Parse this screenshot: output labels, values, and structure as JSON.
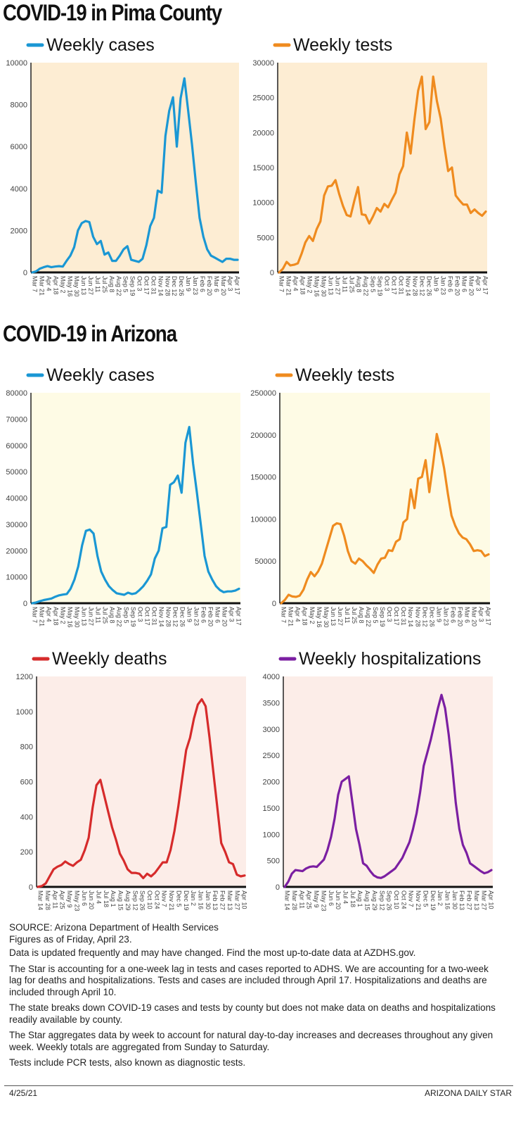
{
  "section_pima": "COVID-19 in Pima County",
  "section_arizona": "COVID-19 in Arizona",
  "colors": {
    "cases": "#1a97d4",
    "tests": "#ef8b1f",
    "deaths": "#d62b2b",
    "hosp": "#7b1fa2",
    "bg_pima": "#fdedd3",
    "bg_az": "#fefbe5",
    "bg_az2": "#fcede8"
  },
  "chart_data": [
    {
      "type": "line",
      "title": "Weekly cases",
      "region": "Pima County",
      "ylim": [
        0,
        10000
      ],
      "yticks": [
        0,
        2000,
        4000,
        6000,
        8000,
        10000
      ],
      "xticks": [
        "Mar 7",
        "Mar 21",
        "Apr 4",
        "Apr 18",
        "May 2",
        "May 16",
        "May 30",
        "Jun 13",
        "Jun 27",
        "Jul 11",
        "Jul 25",
        "Aug 8",
        "Aug 22",
        "Sep 5",
        "Sep 19",
        "Oct 3",
        "Oct 17",
        "Oct 31",
        "Nov 14",
        "Nov 28",
        "Dec 12",
        "Dec 26",
        "Jan 9",
        "Jan 23",
        "Feb 6",
        "Feb 20",
        "Mar 6",
        "Mar 20",
        "Apr 3",
        "Apr 17"
      ],
      "values": [
        0,
        50,
        180,
        250,
        300,
        250,
        280,
        300,
        280,
        550,
        800,
        1200,
        2000,
        2350,
        2450,
        2400,
        1700,
        1350,
        1500,
        850,
        950,
        550,
        550,
        800,
        1100,
        1250,
        600,
        550,
        500,
        650,
        1300,
        2200,
        2600,
        3900,
        3800,
        6500,
        7700,
        8350,
        6000,
        8300,
        9250,
        7700,
        6100,
        4300,
        2600,
        1700,
        1100,
        800,
        700,
        600,
        500,
        650,
        650,
        600,
        600
      ]
    },
    {
      "type": "line",
      "title": "Weekly tests",
      "region": "Pima County",
      "ylim": [
        0,
        30000
      ],
      "yticks": [
        0,
        5000,
        10000,
        15000,
        20000,
        25000,
        30000
      ],
      "xticks": [
        "Mar 7",
        "Mar 21",
        "Apr 4",
        "Apr 18",
        "May 2",
        "May 16",
        "May 30",
        "Jun 13",
        "Jun 27",
        "Jul 11",
        "Jul 25",
        "Aug 8",
        "Aug 22",
        "Sep 5",
        "Sep 19",
        "Oct 3",
        "Oct 17",
        "Oct 31",
        "Nov 14",
        "Nov 28",
        "Dec 12",
        "Dec 26",
        "Jan 9",
        "Jan 23",
        "Feb 6",
        "Feb 20",
        "Mar 6",
        "Mar 20",
        "Apr 3",
        "Apr 17"
      ],
      "values": [
        0,
        500,
        1500,
        1000,
        1100,
        1300,
        2700,
        4300,
        5200,
        4500,
        6200,
        7300,
        11000,
        12300,
        12400,
        13200,
        11200,
        9500,
        8200,
        8000,
        10200,
        12200,
        8300,
        8200,
        7000,
        8000,
        9200,
        8700,
        9800,
        9300,
        10400,
        11400,
        14000,
        15200,
        20000,
        17000,
        21800,
        26000,
        28000,
        20500,
        21500,
        28000,
        24500,
        22000,
        18000,
        14500,
        15000,
        11000,
        10300,
        9700,
        9700,
        8500,
        9000,
        8500,
        8100,
        8700
      ]
    },
    {
      "type": "line",
      "title": "Weekly cases",
      "region": "Arizona",
      "ylim": [
        0,
        80000
      ],
      "yticks": [
        0,
        10000,
        20000,
        30000,
        40000,
        50000,
        60000,
        70000,
        80000
      ],
      "xticks": [
        "Mar 7",
        "Mar 21",
        "Apr 4",
        "Apr 18",
        "May 2",
        "May 16",
        "May 30",
        "Jun 13",
        "Jun 27",
        "Jul 11",
        "Jul 25",
        "Aug 8",
        "Aug 22",
        "Sep 5",
        "Sep 19",
        "Oct 3",
        "Oct 17",
        "Oct 31",
        "Nov 14",
        "Nov 28",
        "Dec 12",
        "Dec 26",
        "Jan 9",
        "Jan 23",
        "Feb 6",
        "Feb 20",
        "Mar 6",
        "Mar 20",
        "Apr 3",
        "Apr 17"
      ],
      "values": [
        0,
        300,
        800,
        1200,
        1500,
        1800,
        2500,
        3000,
        3300,
        3500,
        5500,
        9000,
        14000,
        22000,
        27500,
        28000,
        26500,
        18000,
        12000,
        9000,
        6500,
        5000,
        3800,
        3500,
        3200,
        4000,
        3500,
        3800,
        5000,
        6500,
        8500,
        11000,
        17000,
        20000,
        28500,
        29000,
        45000,
        46000,
        48500,
        42000,
        61000,
        67000,
        53000,
        42000,
        30000,
        18000,
        12000,
        9000,
        6500,
        5000,
        4200,
        4500,
        4500,
        4800,
        5500
      ]
    },
    {
      "type": "line",
      "title": "Weekly tests",
      "region": "Arizona",
      "ylim": [
        0,
        250000
      ],
      "yticks": [
        0,
        50000,
        100000,
        150000,
        200000,
        250000
      ],
      "xticks": [
        "Mar 7",
        "Mar 21",
        "Apr 4",
        "Apr 18",
        "May 2",
        "May 16",
        "May 30",
        "Jun 13",
        "Jun 27",
        "Jul 11",
        "Jul 25",
        "Aug 8",
        "Aug 22",
        "Sep 5",
        "Sep 19",
        "Oct 3",
        "Oct 17",
        "Oct 31",
        "Nov 14",
        "Nov 28",
        "Dec 12",
        "Dec 26",
        "Jan 9",
        "Jan 23",
        "Feb 6",
        "Feb 20",
        "Mar 6",
        "Mar 20",
        "Apr 3",
        "Apr 17"
      ],
      "values": [
        0,
        4000,
        10000,
        8000,
        7500,
        9000,
        16000,
        28000,
        37000,
        32000,
        38000,
        47000,
        62000,
        77000,
        92000,
        95000,
        94000,
        80000,
        62000,
        50000,
        47000,
        53000,
        50000,
        45000,
        41000,
        36000,
        46000,
        53000,
        54000,
        63000,
        62000,
        73000,
        76000,
        96000,
        100000,
        135000,
        113000,
        148000,
        150000,
        170000,
        132000,
        165000,
        201000,
        183000,
        160000,
        130000,
        104000,
        92000,
        83000,
        78000,
        76000,
        70000,
        62000,
        63000,
        62000,
        56000,
        58000
      ]
    },
    {
      "type": "line",
      "title": "Weekly deaths",
      "region": "Arizona",
      "ylim": [
        0,
        1200
      ],
      "yticks": [
        0,
        200,
        400,
        600,
        800,
        1000,
        1200
      ],
      "xticks": [
        "Mar 14",
        "Mar 28",
        "Apr 11",
        "Apr 25",
        "May 9",
        "May 23",
        "Jun 6",
        "Jun 20",
        "Jul 4",
        "Jul 18",
        "Aug 1",
        "Aug 15",
        "Aug 29",
        "Sep 12",
        "Sep 26",
        "Oct 10",
        "Oct 24",
        "Nov 7",
        "Nov 21",
        "Dec 5",
        "Dec 19",
        "Jan 2",
        "Jan 16",
        "Jan 30",
        "Feb 13",
        "Feb 27",
        "Mar 13",
        "Mar 27",
        "Apr 10"
      ],
      "values": [
        0,
        5,
        20,
        60,
        100,
        115,
        125,
        145,
        130,
        120,
        140,
        155,
        210,
        280,
        450,
        580,
        610,
        520,
        430,
        340,
        270,
        190,
        150,
        100,
        80,
        80,
        75,
        50,
        75,
        60,
        80,
        110,
        140,
        140,
        210,
        320,
        460,
        620,
        780,
        850,
        960,
        1040,
        1070,
        1030,
        850,
        650,
        450,
        250,
        200,
        140,
        130,
        70,
        60,
        65
      ]
    },
    {
      "type": "line",
      "title": "Weekly hospitalizations",
      "region": "Arizona",
      "ylim": [
        0,
        4000
      ],
      "yticks": [
        0,
        500,
        1000,
        1500,
        2000,
        2500,
        3000,
        3500,
        4000
      ],
      "xticks": [
        "Mar 14",
        "Mar 28",
        "Apr 11",
        "Apr 25",
        "May 9",
        "May 23",
        "Jun 6",
        "Jun 20",
        "Jul 4",
        "Jul 18",
        "Aug 1",
        "Aug 15",
        "Aug 29",
        "Sep 12",
        "Sep 26",
        "Oct 10",
        "Oct 24",
        "Nov 7",
        "Nov 21",
        "Dec 5",
        "Dec 19",
        "Jan 2",
        "Jan 16",
        "Jan 30",
        "Feb 13",
        "Feb 27",
        "Mar 13",
        "Mar 27",
        "Apr 10"
      ],
      "values": [
        0,
        100,
        250,
        320,
        310,
        300,
        350,
        380,
        390,
        380,
        450,
        520,
        700,
        950,
        1300,
        1750,
        2000,
        2050,
        2100,
        1600,
        1100,
        800,
        450,
        400,
        300,
        220,
        180,
        170,
        200,
        250,
        300,
        350,
        450,
        550,
        700,
        850,
        1100,
        1400,
        1800,
        2300,
        2550,
        2800,
        3100,
        3400,
        3650,
        3400,
        2900,
        2300,
        1600,
        1100,
        800,
        650,
        450,
        400,
        350,
        300,
        260,
        280,
        320
      ]
    }
  ],
  "footer": {
    "source": "SOURCE: Arizona Department of Health Services",
    "as_of": "Figures as of Friday, April 23.",
    "p1": "Data is updated frequently and may have changed. Find the most up-to-date data at AZDHS.gov.",
    "p2": "The Star is accounting for a one-week lag in tests and cases reported to ADHS. We are accounting for a two-week lag for deaths and hospitalizations. Tests and cases are included through April 17. Hospitalizations and deaths are included through April 10.",
    "p3": "The state breaks down COVID-19 cases and tests by county but does not make data on deaths and hospitalizations readily available by county.",
    "p4": "The Star aggregates data by week to account for natural day-to-day increases and decreases throughout any given week. Weekly totals are aggregated from Sunday to Saturday.",
    "p5": "Tests include PCR tests, also known as diagnostic tests.",
    "date": "4/25/21",
    "publisher": "ARIZONA DAILY STAR"
  }
}
